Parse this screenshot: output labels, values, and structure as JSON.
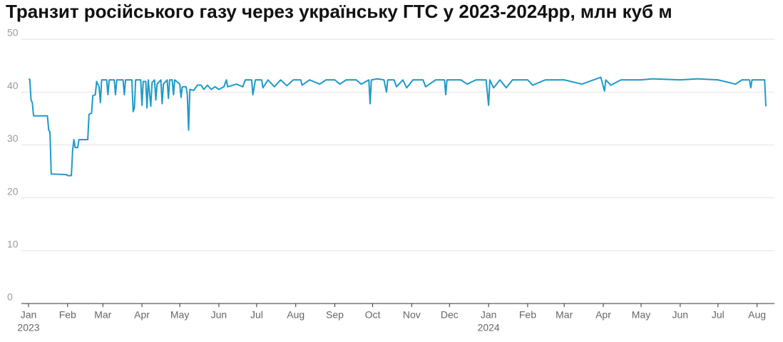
{
  "chart_data": {
    "type": "line",
    "title": "Транзит російського газу через українську ГТС у 2023-2024рр, млн куб м",
    "color": "#1f9ac8",
    "ylim": [
      0,
      50
    ],
    "yticks": [
      0,
      10,
      20,
      30,
      40,
      50
    ],
    "grid": true,
    "xlim": [
      "2023-01-01",
      "2024-08-08"
    ],
    "xticks": [
      {
        "value": "2023-01-01",
        "label": "Jan"
      },
      {
        "value": "2023-02-01",
        "label": "Feb"
      },
      {
        "value": "2023-03-01",
        "label": "Mar"
      },
      {
        "value": "2023-04-01",
        "label": "Apr"
      },
      {
        "value": "2023-05-01",
        "label": "May"
      },
      {
        "value": "2023-06-01",
        "label": "Jun"
      },
      {
        "value": "2023-07-01",
        "label": "Jul"
      },
      {
        "value": "2023-08-01",
        "label": "Aug"
      },
      {
        "value": "2023-09-01",
        "label": "Sep"
      },
      {
        "value": "2023-10-01",
        "label": "Oct"
      },
      {
        "value": "2023-11-01",
        "label": "Nov"
      },
      {
        "value": "2023-12-01",
        "label": "Dec"
      },
      {
        "value": "2024-01-01",
        "label": "Jan"
      },
      {
        "value": "2024-02-01",
        "label": "Feb"
      },
      {
        "value": "2024-03-01",
        "label": "Mar"
      },
      {
        "value": "2024-04-01",
        "label": "Apr"
      },
      {
        "value": "2024-05-01",
        "label": "May"
      },
      {
        "value": "2024-06-01",
        "label": "Jun"
      },
      {
        "value": "2024-07-01",
        "label": "Jul"
      },
      {
        "value": "2024-08-01",
        "label": "Aug"
      }
    ],
    "xtick_years": [
      {
        "value": "2023-01-01",
        "label": "2023"
      },
      {
        "value": "2024-01-01",
        "label": "2024"
      }
    ],
    "x": [
      "2023-01-01",
      "2023-01-02",
      "2023-01-03",
      "2023-01-04",
      "2023-01-05",
      "2023-01-16",
      "2023-01-17",
      "2023-01-18",
      "2023-01-19",
      "2023-01-31",
      "2023-02-01",
      "2023-02-04",
      "2023-02-05",
      "2023-02-06",
      "2023-02-07",
      "2023-02-09",
      "2023-02-10",
      "2023-02-17",
      "2023-02-18",
      "2023-02-20",
      "2023-02-21",
      "2023-02-23",
      "2023-02-24",
      "2023-02-26",
      "2023-02-27",
      "2023-02-28",
      "2023-03-04",
      "2023-03-05",
      "2023-03-06",
      "2023-03-10",
      "2023-03-11",
      "2023-03-12",
      "2023-03-17",
      "2023-03-18",
      "2023-03-19",
      "2023-03-24",
      "2023-03-25",
      "2023-03-26",
      "2023-03-27",
      "2023-03-31",
      "2023-04-01",
      "2023-04-02",
      "2023-04-04",
      "2023-04-05",
      "2023-04-06",
      "2023-04-08",
      "2023-04-09",
      "2023-04-11",
      "2023-04-12",
      "2023-04-13",
      "2023-04-16",
      "2023-04-17",
      "2023-04-18",
      "2023-04-21",
      "2023-04-22",
      "2023-04-23",
      "2023-04-25",
      "2023-04-26",
      "2023-04-27",
      "2023-05-01",
      "2023-05-02",
      "2023-05-03",
      "2023-05-06",
      "2023-05-07",
      "2023-05-08",
      "2023-05-09",
      "2023-05-12",
      "2023-05-15",
      "2023-05-18",
      "2023-05-20",
      "2023-05-23",
      "2023-05-26",
      "2023-05-29",
      "2023-06-01",
      "2023-06-05",
      "2023-06-07",
      "2023-06-08",
      "2023-06-15",
      "2023-06-20",
      "2023-06-22",
      "2023-06-27",
      "2023-06-28",
      "2023-06-30",
      "2023-07-05",
      "2023-07-06",
      "2023-07-10",
      "2023-07-15",
      "2023-07-20",
      "2023-07-25",
      "2023-07-30",
      "2023-08-05",
      "2023-08-06",
      "2023-08-12",
      "2023-08-20",
      "2023-08-25",
      "2023-09-01",
      "2023-09-05",
      "2023-09-10",
      "2023-09-18",
      "2023-09-22",
      "2023-09-28",
      "2023-09-29",
      "2023-09-30",
      "2023-10-05",
      "2023-10-10",
      "2023-10-12",
      "2023-10-13",
      "2023-10-18",
      "2023-10-20",
      "2023-10-25",
      "2023-10-28",
      "2023-11-02",
      "2023-11-10",
      "2023-11-12",
      "2023-11-20",
      "2023-11-27",
      "2023-11-28",
      "2023-11-29",
      "2023-12-10",
      "2023-12-15",
      "2023-12-22",
      "2023-12-30",
      "2024-01-01",
      "2024-01-02",
      "2024-01-05",
      "2024-01-10",
      "2024-01-15",
      "2024-01-20",
      "2024-02-01",
      "2024-02-05",
      "2024-02-15",
      "2024-03-01",
      "2024-03-15",
      "2024-03-30",
      "2024-04-02",
      "2024-04-03",
      "2024-04-07",
      "2024-04-15",
      "2024-05-01",
      "2024-05-10",
      "2024-06-01",
      "2024-06-15",
      "2024-07-01",
      "2024-07-15",
      "2024-07-20",
      "2024-07-26",
      "2024-07-27",
      "2024-07-28",
      "2024-08-07",
      "2024-08-08"
    ],
    "values": [
      42.4,
      42.4,
      38.5,
      38,
      35.5,
      35.5,
      32.8,
      32.5,
      24.5,
      24.4,
      24.2,
      24.2,
      29,
      31,
      29.5,
      29.5,
      31,
      31,
      35.8,
      36,
      39.3,
      39.5,
      42,
      41,
      38,
      42.3,
      42.3,
      39.5,
      42.3,
      42.3,
      39.5,
      42.3,
      42.3,
      39.5,
      42.3,
      42.3,
      36.3,
      37,
      42.3,
      42.3,
      37.5,
      42,
      42,
      37,
      42.3,
      37.3,
      41.8,
      42.3,
      38.5,
      41.5,
      42.3,
      37.8,
      41.5,
      42.3,
      38.8,
      42.3,
      42.3,
      39.5,
      42.3,
      41.5,
      39,
      41,
      41,
      39.5,
      32.8,
      40.5,
      40.3,
      41.3,
      41.3,
      40.5,
      41.3,
      40.5,
      41,
      40.5,
      41,
      42.3,
      41,
      41.5,
      41,
      42.3,
      42.3,
      39.5,
      42.3,
      42.3,
      40.8,
      42.3,
      41,
      42.3,
      41.2,
      42.3,
      42.3,
      41.3,
      42.3,
      41.5,
      42.3,
      42.3,
      41.5,
      42.3,
      42.3,
      41.5,
      42.3,
      37.8,
      42.3,
      42.5,
      42.3,
      40,
      42.3,
      42.3,
      41,
      42.3,
      40.8,
      42.3,
      42.3,
      41,
      42.3,
      42.3,
      39.5,
      42.3,
      42.3,
      41.5,
      42.3,
      42.3,
      37.5,
      42.3,
      40.8,
      42.3,
      40.8,
      42.3,
      42.3,
      41.3,
      42.3,
      42.3,
      41.5,
      42.8,
      40.2,
      42.3,
      41.3,
      42.3,
      42.3,
      42.5,
      42.3,
      42.5,
      42.3,
      41.5,
      42.3,
      42.3,
      40.8,
      42.3,
      42.3,
      37.3
    ]
  }
}
